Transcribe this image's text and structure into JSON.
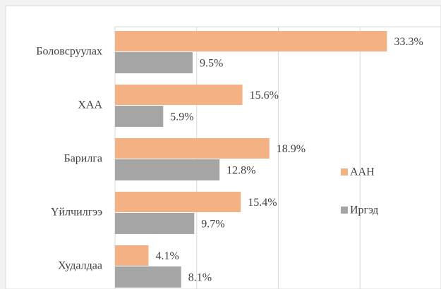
{
  "chart_data": {
    "type": "hbar",
    "categories": [
      "Боловсруулах",
      "ХАА",
      "Барилга",
      "Үйлчилгээ",
      "Худалдаа"
    ],
    "series": [
      {
        "name": "ААН",
        "color": "#f4b183",
        "values": [
          33.3,
          15.6,
          18.9,
          15.4,
          4.1
        ],
        "value_labels": [
          "33.3%",
          "15.6%",
          "18.9%",
          "15.4%",
          "4.1%"
        ]
      },
      {
        "name": "Иргэд",
        "color": "#a5a5a5",
        "values": [
          9.5,
          5.9,
          12.8,
          9.7,
          8.1
        ],
        "value_labels": [
          "9.5%",
          "5.9%",
          "12.8%",
          "9.7%",
          "8.1%"
        ]
      }
    ],
    "xlim": [
      0,
      40
    ],
    "xticks": [
      0,
      10,
      20,
      30
    ],
    "grid": true,
    "legend": "right"
  }
}
